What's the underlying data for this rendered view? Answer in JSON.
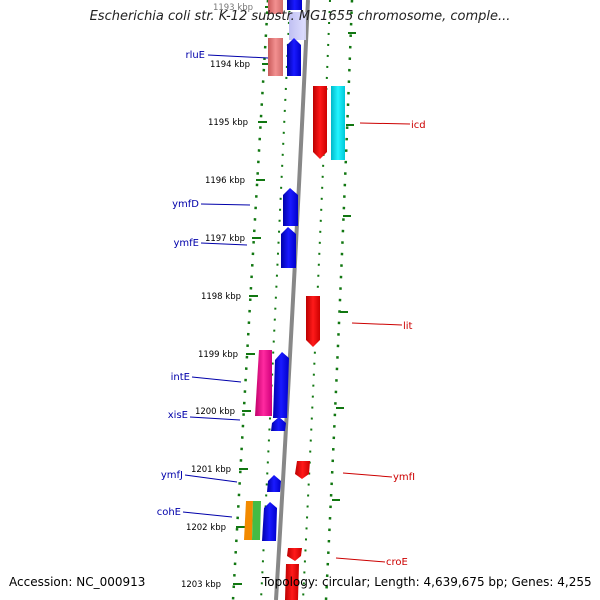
{
  "title": "Escherichia coli str. K-12 substr. MG1655 chromosome, comple...",
  "accession": "Accession: NC_000913",
  "topology": "Topology: circular; Length: 4,639,675 bp; Genes: 4,255",
  "colors": {
    "plus_label": "#0000aa",
    "minus_label": "#cc0000",
    "ticks": "#117711",
    "backbone": "#888888"
  },
  "kbp_labels": [
    "1193 kbp",
    "1194 kbp",
    "1195 kbp",
    "1196 kbp",
    "1197 kbp",
    "1198 kbp",
    "1199 kbp",
    "1200 kbp",
    "1201 kbp",
    "1202 kbp",
    "1203 kbp"
  ],
  "genes": [
    {
      "name": "rluE",
      "strand": "+"
    },
    {
      "name": "icd",
      "strand": "-"
    },
    {
      "name": "ymfD",
      "strand": "+"
    },
    {
      "name": "ymfE",
      "strand": "+"
    },
    {
      "name": "lit",
      "strand": "-"
    },
    {
      "name": "intE",
      "strand": "+"
    },
    {
      "name": "xisE",
      "strand": "+"
    },
    {
      "name": "ymfJ",
      "strand": "+"
    },
    {
      "name": "ymfI",
      "strand": "-"
    },
    {
      "name": "cohE",
      "strand": "+"
    },
    {
      "name": "croE",
      "strand": "-"
    }
  ]
}
